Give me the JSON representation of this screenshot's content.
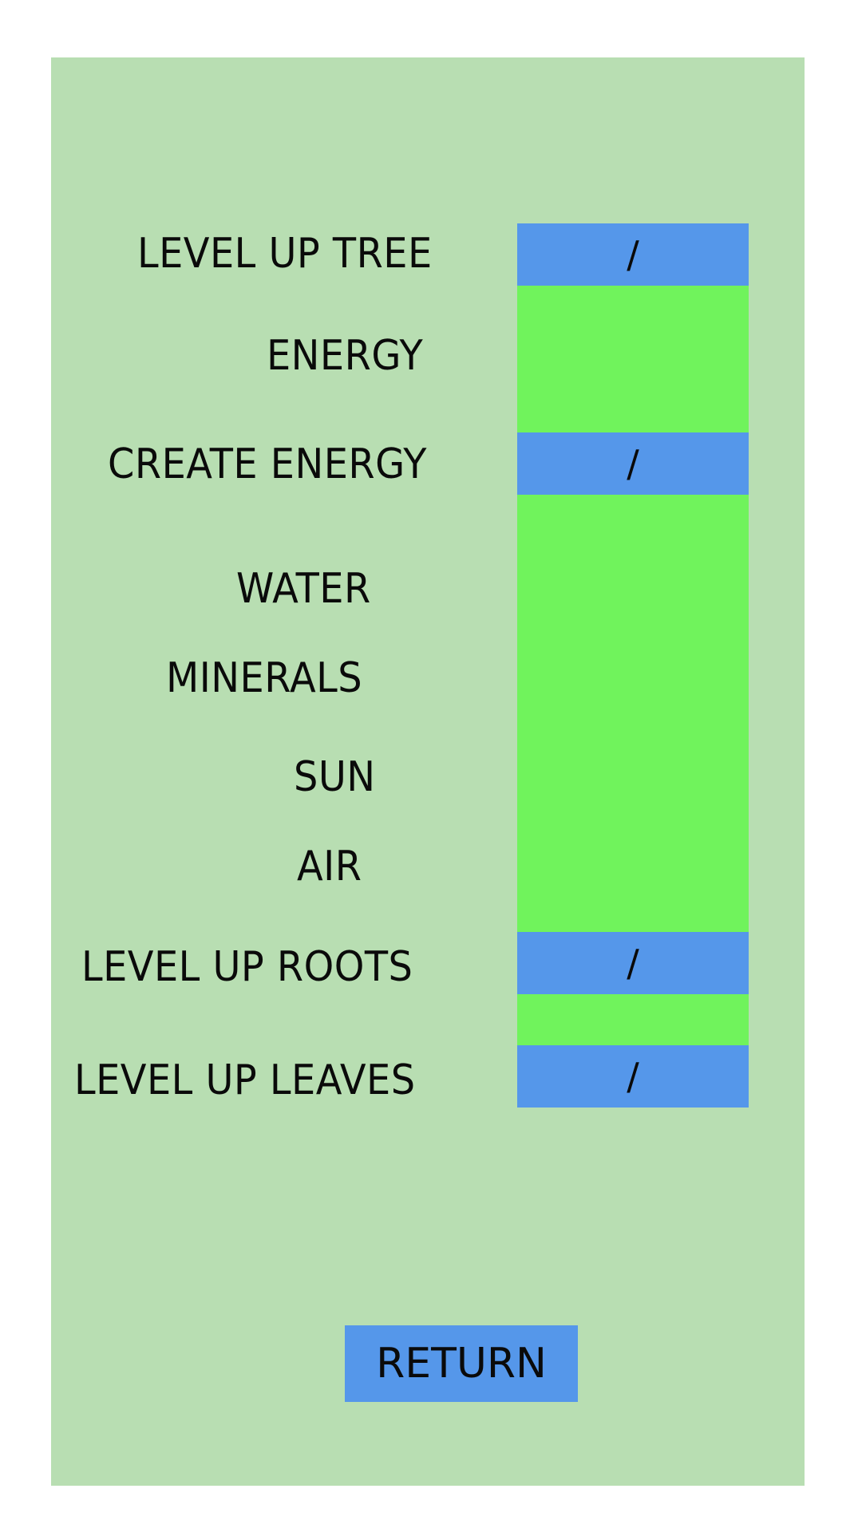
{
  "colors": {
    "background": "#ffffff",
    "panel": "#b8deb2",
    "accent_blue": "#5597ea",
    "accent_green": "#70f35c",
    "text": "#0a0a0a"
  },
  "upgrades": {
    "tree": {
      "label": "LEVEL UP TREE",
      "value": "/"
    },
    "energy": {
      "label": "ENERGY"
    },
    "create_energy": {
      "label": "CREATE ENERGY",
      "value": "/"
    },
    "resources": {
      "water": "WATER",
      "minerals": "MINERALS",
      "sun": "SUN",
      "air": "AIR"
    },
    "roots": {
      "label": "LEVEL UP ROOTS",
      "value": "/"
    },
    "leaves": {
      "label": "LEVEL UP LEAVES",
      "value": "/"
    }
  },
  "return_button": {
    "label": "RETURN"
  }
}
